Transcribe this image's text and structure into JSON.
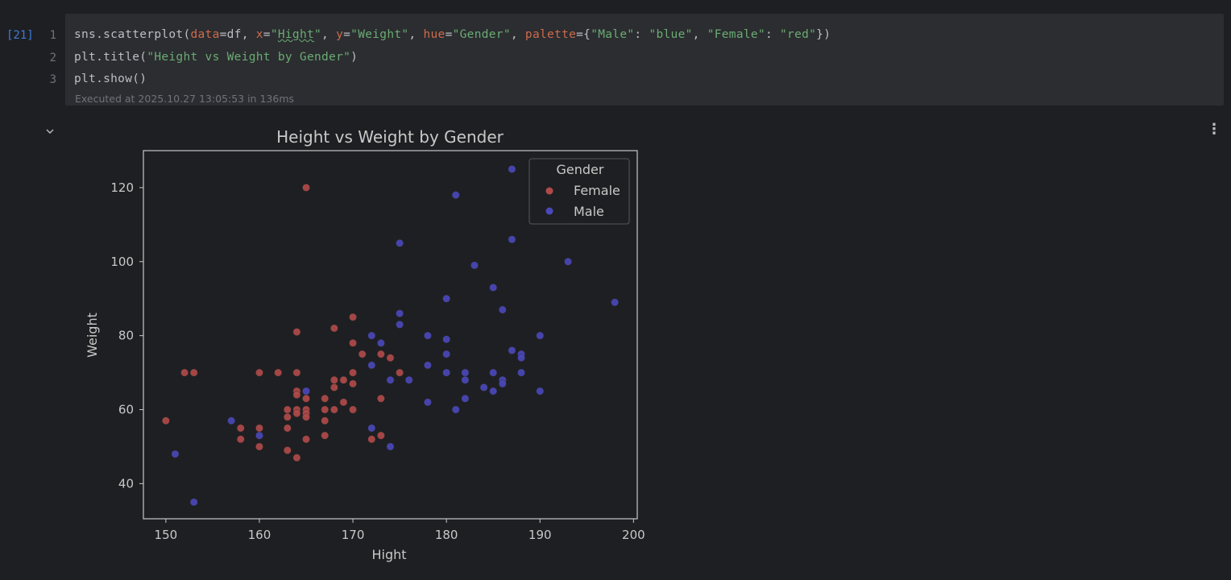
{
  "cell": {
    "exec_count": "[21]",
    "line_numbers": [
      "1",
      "2",
      "3"
    ],
    "code": {
      "line1": {
        "p1": "sns.scatterplot(",
        "k_data": "data",
        "p2": "=df, ",
        "k_x": "x",
        "p3": "=",
        "s_hight_q1": "\"",
        "s_hight": "Hight",
        "s_hight_q2": "\"",
        "p4": ", ",
        "k_y": "y",
        "p5": "=",
        "s_weight": "\"Weight\"",
        "p6": ", ",
        "k_hue": "hue",
        "p7": "=",
        "s_gender": "\"Gender\"",
        "p8": ", ",
        "k_palette": "palette",
        "p9": "={",
        "s_male": "\"Male\"",
        "p10": ": ",
        "s_blue": "\"blue\"",
        "p11": ", ",
        "s_female": "\"Female\"",
        "p12": ": ",
        "s_red": "\"red\"",
        "p13": "})"
      },
      "line2": {
        "p1": "plt.title(",
        "s_title": "\"Height vs Weight by Gender\"",
        "p2": ")"
      },
      "line3": "plt.show()"
    },
    "executed_note": "Executed at 2025.10.27 13:05:53 in 136ms"
  },
  "output": {
    "collapse_icon": "chevron-down-icon",
    "menu_icon": "more-vertical-icon"
  },
  "colors": {
    "female": "#b04a4a",
    "male": "#4a48b8",
    "code_keyword": "#cf6a4c",
    "code_string": "#6aab73",
    "exec_count": "#3e7bd6"
  },
  "chart_data": {
    "type": "scatter",
    "title": "Height vs Weight by Gender",
    "xlabel": "Hight",
    "ylabel": "Weight",
    "xlim": [
      147.6,
      200.4
    ],
    "ylim": [
      30.5,
      130
    ],
    "xticks": [
      150,
      160,
      170,
      180,
      190,
      200
    ],
    "yticks": [
      40,
      60,
      80,
      100,
      120
    ],
    "grid": false,
    "legend": {
      "title": "Gender",
      "placement": "top-right",
      "entries": [
        "Female",
        "Male"
      ]
    },
    "series": [
      {
        "name": "Female",
        "points": [
          [
            150,
            57
          ],
          [
            152,
            70
          ],
          [
            153,
            70
          ],
          [
            158,
            55
          ],
          [
            158,
            52
          ],
          [
            160,
            70
          ],
          [
            160,
            55
          ],
          [
            160,
            50
          ],
          [
            162,
            70
          ],
          [
            163,
            60
          ],
          [
            163,
            58
          ],
          [
            163,
            55
          ],
          [
            163,
            49
          ],
          [
            164,
            81
          ],
          [
            164,
            70
          ],
          [
            164,
            65
          ],
          [
            164,
            64
          ],
          [
            164,
            60
          ],
          [
            164,
            59
          ],
          [
            164,
            47
          ],
          [
            165,
            120
          ],
          [
            165,
            63
          ],
          [
            165,
            60
          ],
          [
            165,
            59
          ],
          [
            165,
            58
          ],
          [
            165,
            52
          ],
          [
            167,
            63
          ],
          [
            167,
            60
          ],
          [
            167,
            57
          ],
          [
            167,
            53
          ],
          [
            168,
            82
          ],
          [
            168,
            68
          ],
          [
            168,
            66
          ],
          [
            168,
            60
          ],
          [
            169,
            68
          ],
          [
            169,
            62
          ],
          [
            170,
            85
          ],
          [
            170,
            78
          ],
          [
            170,
            70
          ],
          [
            170,
            67
          ],
          [
            170,
            60
          ],
          [
            171,
            75
          ],
          [
            172,
            52
          ],
          [
            173,
            75
          ],
          [
            173,
            63
          ],
          [
            173,
            53
          ],
          [
            174,
            74
          ],
          [
            175,
            70
          ]
        ]
      },
      {
        "name": "Male",
        "points": [
          [
            151,
            48
          ],
          [
            153,
            35
          ],
          [
            157,
            57
          ],
          [
            160,
            53
          ],
          [
            165,
            65
          ],
          [
            172,
            80
          ],
          [
            172,
            72
          ],
          [
            172,
            55
          ],
          [
            173,
            78
          ],
          [
            174,
            68
          ],
          [
            174,
            50
          ],
          [
            175,
            105
          ],
          [
            175,
            86
          ],
          [
            175,
            83
          ],
          [
            176,
            68
          ],
          [
            178,
            80
          ],
          [
            178,
            72
          ],
          [
            178,
            62
          ],
          [
            180,
            90
          ],
          [
            180,
            79
          ],
          [
            180,
            75
          ],
          [
            180,
            70
          ],
          [
            181,
            118
          ],
          [
            181,
            60
          ],
          [
            182,
            70
          ],
          [
            182,
            68
          ],
          [
            182,
            63
          ],
          [
            183,
            99
          ],
          [
            184,
            66
          ],
          [
            185,
            93
          ],
          [
            185,
            70
          ],
          [
            185,
            65
          ],
          [
            186,
            87
          ],
          [
            186,
            68
          ],
          [
            186,
            67
          ],
          [
            187,
            125
          ],
          [
            187,
            106
          ],
          [
            187,
            76
          ],
          [
            188,
            75
          ],
          [
            188,
            74
          ],
          [
            188,
            70
          ],
          [
            190,
            80
          ],
          [
            190,
            65
          ],
          [
            193,
            100
          ],
          [
            198,
            89
          ]
        ]
      }
    ]
  }
}
